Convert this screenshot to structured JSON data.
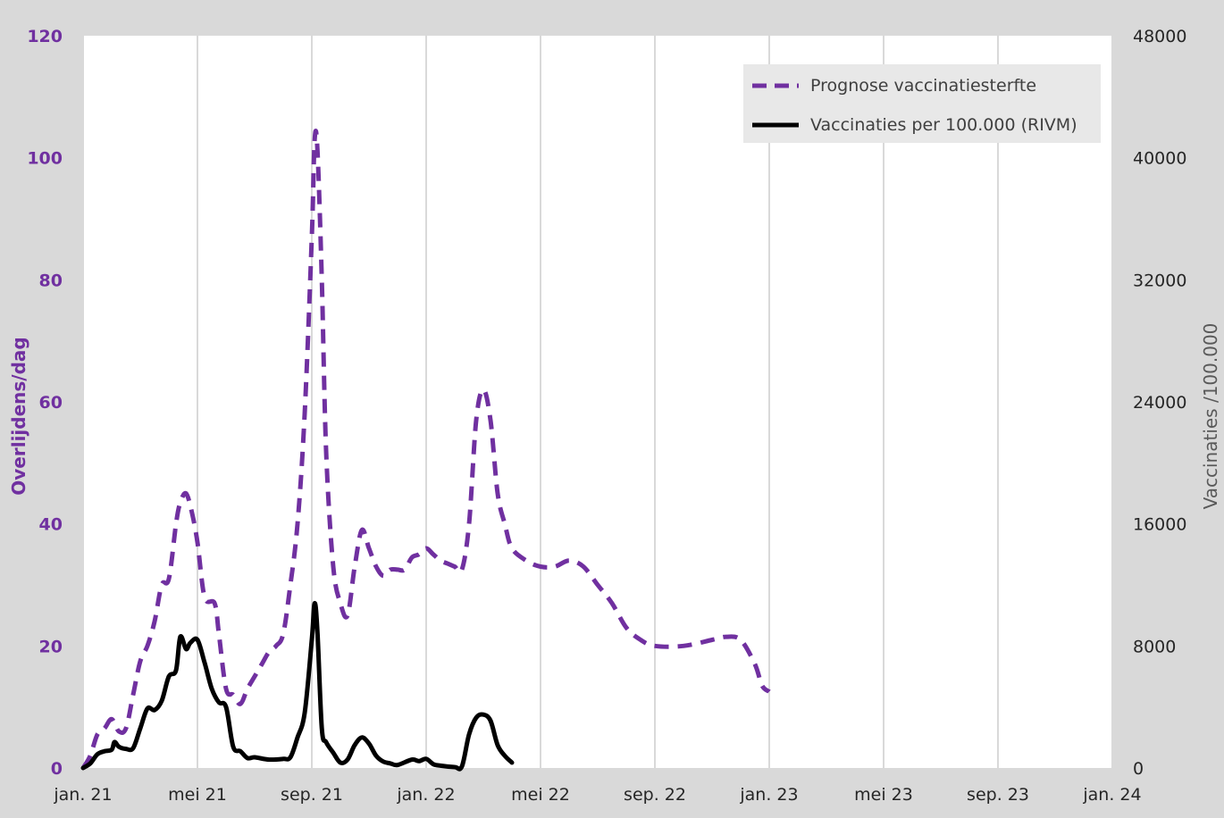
{
  "chart_data": {
    "type": "line",
    "title": "",
    "y_left_label": "Overlijdens/dag",
    "y_right_label": "Vaccinaties /100.000",
    "y_left_ticks": [
      "0",
      "20",
      "40",
      "60",
      "80",
      "100",
      "120"
    ],
    "y_right_ticks": [
      "0",
      "8000",
      "16000",
      "24000",
      "32000",
      "40000",
      "48000"
    ],
    "x_ticks": [
      "jan. 21",
      "mei 21",
      "sep. 21",
      "jan. 22",
      "mei 22",
      "sep. 22",
      "jan. 23",
      "mei 23",
      "sep. 23",
      "jan. 24"
    ],
    "ylim_left": [
      0,
      120
    ],
    "ylim_right": [
      0,
      48000
    ],
    "legend_position": "top-right",
    "colors": {
      "prognose": "#7030a0",
      "vaccinaties": "#000000",
      "left_axis": "#7030a0",
      "right_axis": "#595959",
      "grid": "#d9d9d9"
    },
    "series": [
      {
        "name": "Prognose vaccinatiesterfte",
        "axis": "left",
        "style": "dashed",
        "points": [
          [
            0,
            0
          ],
          [
            0.25,
            2
          ],
          [
            0.5,
            5.5
          ],
          [
            0.75,
            6.5
          ],
          [
            1.0,
            8
          ],
          [
            1.25,
            6
          ],
          [
            1.5,
            6.5
          ],
          [
            1.75,
            12
          ],
          [
            2.0,
            17.5
          ],
          [
            2.25,
            20
          ],
          [
            2.5,
            24
          ],
          [
            2.75,
            30
          ],
          [
            3.0,
            31
          ],
          [
            3.25,
            40
          ],
          [
            3.4,
            43.5
          ],
          [
            3.6,
            45
          ],
          [
            3.8,
            42
          ],
          [
            4.0,
            37
          ],
          [
            4.25,
            28
          ],
          [
            4.6,
            27
          ],
          [
            4.75,
            22
          ],
          [
            5.0,
            13
          ],
          [
            5.25,
            12
          ],
          [
            5.5,
            10.5
          ],
          [
            5.75,
            13
          ],
          [
            6.0,
            15
          ],
          [
            6.25,
            17
          ],
          [
            6.5,
            19
          ],
          [
            6.75,
            20
          ],
          [
            7.0,
            22
          ],
          [
            7.25,
            30
          ],
          [
            7.5,
            40
          ],
          [
            7.75,
            58
          ],
          [
            8.0,
            87
          ],
          [
            8.1,
            103
          ],
          [
            8.2,
            101
          ],
          [
            8.35,
            80
          ],
          [
            8.5,
            52
          ],
          [
            8.75,
            33
          ],
          [
            9.0,
            27
          ],
          [
            9.25,
            25
          ],
          [
            9.5,
            33
          ],
          [
            9.75,
            39
          ],
          [
            10.0,
            36
          ],
          [
            10.25,
            33
          ],
          [
            10.5,
            31.5
          ],
          [
            10.75,
            32.5
          ],
          [
            11.0,
            32.5
          ],
          [
            11.25,
            32.5
          ],
          [
            11.5,
            34.5
          ],
          [
            11.75,
            35
          ],
          [
            12.0,
            36
          ],
          [
            12.25,
            35
          ],
          [
            12.5,
            34
          ],
          [
            12.75,
            33.5
          ],
          [
            13.0,
            33
          ],
          [
            13.25,
            32.5
          ],
          [
            13.5,
            40
          ],
          [
            13.75,
            57
          ],
          [
            14.0,
            62
          ],
          [
            14.25,
            57
          ],
          [
            14.5,
            45
          ],
          [
            14.75,
            40
          ],
          [
            15.0,
            36
          ],
          [
            15.5,
            34
          ],
          [
            16.0,
            33
          ],
          [
            16.5,
            33
          ],
          [
            17.0,
            34
          ],
          [
            17.5,
            33
          ],
          [
            18.0,
            30
          ],
          [
            18.5,
            27
          ],
          [
            19.0,
            23
          ],
          [
            19.5,
            21
          ],
          [
            20.0,
            20
          ],
          [
            21.0,
            20
          ],
          [
            22.0,
            21
          ],
          [
            22.5,
            21.5
          ],
          [
            23.0,
            21
          ],
          [
            23.5,
            17
          ],
          [
            23.75,
            13.5
          ],
          [
            24.0,
            12.5
          ]
        ]
      },
      {
        "name": "Vaccinaties per 100.000 (RIVM)",
        "axis": "right",
        "style": "solid",
        "points": [
          [
            0,
            0
          ],
          [
            0.25,
            300
          ],
          [
            0.5,
            900
          ],
          [
            0.75,
            1100
          ],
          [
            1.0,
            1200
          ],
          [
            1.1,
            1700
          ],
          [
            1.25,
            1400
          ],
          [
            1.5,
            1250
          ],
          [
            1.75,
            1300
          ],
          [
            2.0,
            2600
          ],
          [
            2.25,
            3900
          ],
          [
            2.5,
            3800
          ],
          [
            2.75,
            4400
          ],
          [
            3.0,
            6000
          ],
          [
            3.25,
            6400
          ],
          [
            3.4,
            8600
          ],
          [
            3.6,
            7800
          ],
          [
            3.75,
            8200
          ],
          [
            4.0,
            8400
          ],
          [
            4.25,
            6900
          ],
          [
            4.5,
            5200
          ],
          [
            4.75,
            4300
          ],
          [
            5.0,
            4000
          ],
          [
            5.25,
            1400
          ],
          [
            5.5,
            1100
          ],
          [
            5.75,
            650
          ],
          [
            6.0,
            700
          ],
          [
            6.5,
            550
          ],
          [
            7.0,
            600
          ],
          [
            7.25,
            700
          ],
          [
            7.5,
            2000
          ],
          [
            7.75,
            3600
          ],
          [
            8.0,
            8400
          ],
          [
            8.1,
            10800
          ],
          [
            8.2,
            8800
          ],
          [
            8.35,
            2600
          ],
          [
            8.5,
            1700
          ],
          [
            8.75,
            1000
          ],
          [
            9.0,
            350
          ],
          [
            9.25,
            550
          ],
          [
            9.5,
            1500
          ],
          [
            9.75,
            2000
          ],
          [
            10.0,
            1600
          ],
          [
            10.25,
            800
          ],
          [
            10.5,
            420
          ],
          [
            10.75,
            300
          ],
          [
            11.0,
            200
          ],
          [
            11.5,
            550
          ],
          [
            11.75,
            450
          ],
          [
            12.0,
            600
          ],
          [
            12.25,
            250
          ],
          [
            12.5,
            150
          ],
          [
            13.0,
            60
          ],
          [
            13.25,
            100
          ],
          [
            13.5,
            2200
          ],
          [
            13.75,
            3300
          ],
          [
            14.0,
            3500
          ],
          [
            14.25,
            3100
          ],
          [
            14.5,
            1500
          ],
          [
            14.75,
            800
          ],
          [
            15.0,
            350
          ]
        ]
      }
    ]
  }
}
